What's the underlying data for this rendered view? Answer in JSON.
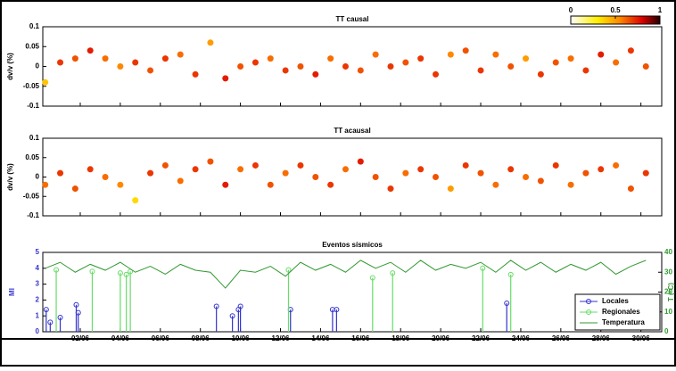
{
  "chart_data": [
    {
      "type": "scatter",
      "title": "TT causal",
      "y_label": "dv/v (%)",
      "xlim": [
        0.13,
        31.04
      ],
      "ylim": [
        -0.1,
        0.1
      ],
      "yticks": [
        -0.1,
        -0.05,
        0,
        0.05,
        0.1
      ],
      "clim": [
        0,
        1
      ],
      "cticks": [
        0,
        0.5,
        1
      ],
      "x": [
        0.25,
        1,
        1.75,
        2.5,
        3.25,
        4,
        4.75,
        5.5,
        6.25,
        7,
        7.75,
        8.5,
        9.25,
        10,
        10.75,
        11.5,
        12.25,
        13,
        13.75,
        14.5,
        15.25,
        16,
        16.75,
        17.5,
        18.25,
        19,
        19.75,
        20.5,
        21.25,
        22,
        22.75,
        23.5,
        24.25,
        25,
        25.75,
        26.5,
        27.25,
        28,
        28.75,
        29.5,
        30.25
      ],
      "values": [
        -0.04,
        0.01,
        0.02,
        0.04,
        0.02,
        0.0,
        0.01,
        -0.01,
        0.02,
        0.03,
        -0.02,
        0.06,
        -0.03,
        0.0,
        0.01,
        0.02,
        -0.01,
        0.0,
        -0.02,
        0.02,
        0.0,
        -0.01,
        0.03,
        0.0,
        0.01,
        0.02,
        -0.02,
        0.03,
        0.04,
        -0.01,
        0.03,
        0.0,
        0.02,
        -0.02,
        0.01,
        0.02,
        -0.01,
        0.03,
        0.01,
        0.04,
        0.0
      ],
      "color_values": [
        0.4,
        0.7,
        0.65,
        0.75,
        0.6,
        0.55,
        0.7,
        0.65,
        0.7,
        0.6,
        0.7,
        0.5,
        0.75,
        0.65,
        0.7,
        0.6,
        0.7,
        0.65,
        0.75,
        0.6,
        0.7,
        0.65,
        0.6,
        0.7,
        0.65,
        0.7,
        0.7,
        0.55,
        0.65,
        0.7,
        0.6,
        0.65,
        0.5,
        0.7,
        0.65,
        0.6,
        0.7,
        0.75,
        0.6,
        0.7,
        0.65
      ]
    },
    {
      "type": "scatter",
      "title": "TT acausal",
      "y_label": "dv/v (%)",
      "xlim": [
        0.13,
        31.04
      ],
      "ylim": [
        -0.1,
        0.1
      ],
      "yticks": [
        -0.1,
        -0.05,
        0,
        0.05,
        0.1
      ],
      "x": [
        0.25,
        1,
        1.75,
        2.5,
        3.25,
        4,
        4.75,
        5.5,
        6.25,
        7,
        7.75,
        8.5,
        9.25,
        10,
        10.75,
        11.5,
        12.25,
        13,
        13.75,
        14.5,
        15.25,
        16,
        16.75,
        17.5,
        18.25,
        19,
        19.75,
        20.5,
        21.25,
        22,
        22.75,
        23.5,
        24.25,
        25,
        25.75,
        26.5,
        27.25,
        28,
        28.75,
        29.5,
        30.25
      ],
      "values": [
        -0.02,
        0.01,
        -0.03,
        0.02,
        0.0,
        -0.02,
        -0.06,
        0.01,
        0.03,
        -0.01,
        0.02,
        0.04,
        -0.02,
        0.02,
        0.03,
        -0.02,
        0.01,
        0.03,
        0.0,
        -0.02,
        0.02,
        0.04,
        0.0,
        -0.03,
        0.01,
        0.02,
        0.0,
        -0.03,
        0.03,
        0.01,
        -0.02,
        0.02,
        0.0,
        -0.01,
        0.03,
        -0.02,
        0.01,
        0.02,
        0.03,
        -0.03,
        0.01
      ],
      "color_values": [
        0.6,
        0.7,
        0.65,
        0.7,
        0.6,
        0.55,
        0.35,
        0.7,
        0.65,
        0.6,
        0.7,
        0.65,
        0.75,
        0.6,
        0.7,
        0.65,
        0.6,
        0.7,
        0.65,
        0.7,
        0.6,
        0.75,
        0.65,
        0.7,
        0.6,
        0.7,
        0.65,
        0.5,
        0.7,
        0.65,
        0.6,
        0.7,
        0.6,
        0.65,
        0.7,
        0.6,
        0.65,
        0.7,
        0.6,
        0.65,
        0.7
      ]
    },
    {
      "type": "stem",
      "title": "Eventos sísmicos",
      "y_label": "Ml",
      "y2_label": "T (ºC)",
      "xlim": [
        0.13,
        31.04
      ],
      "ylim": [
        0,
        5
      ],
      "yticks": [
        0,
        1,
        2,
        3,
        4,
        5
      ],
      "y2lim": [
        0,
        40
      ],
      "y2ticks": [
        0,
        10,
        20,
        30,
        40
      ],
      "xticks": [
        {
          "value": 2,
          "label": "02/06"
        },
        {
          "value": 4,
          "label": "04/06"
        },
        {
          "value": 6,
          "label": "06/06"
        },
        {
          "value": 8,
          "label": "08/06"
        },
        {
          "value": 10,
          "label": "10/06"
        },
        {
          "value": 12,
          "label": "12/06"
        },
        {
          "value": 14,
          "label": "14/06"
        },
        {
          "value": 16,
          "label": "16/06"
        },
        {
          "value": 18,
          "label": "18/06"
        },
        {
          "value": 20,
          "label": "20/06"
        },
        {
          "value": 22,
          "label": "22/06"
        },
        {
          "value": 24,
          "label": "24/06"
        },
        {
          "value": 26,
          "label": "26/06"
        },
        {
          "value": 28,
          "label": "28/06"
        },
        {
          "value": 30,
          "label": "30/06"
        }
      ],
      "legend": "lower right",
      "series": [
        {
          "name": "Locales",
          "color": "#3333cc",
          "x": [
            0.3,
            0.5,
            1.0,
            1.8,
            1.9,
            8.8,
            9.6,
            9.9,
            10.0,
            12.5,
            14.6,
            14.8,
            23.3
          ],
          "values": [
            1.4,
            0.6,
            0.9,
            1.7,
            1.2,
            1.6,
            1.0,
            1.4,
            1.6,
            1.4,
            1.4,
            1.4,
            1.8
          ]
        },
        {
          "name": "Regionales",
          "color": "#66dd66",
          "x": [
            0.8,
            2.6,
            4.0,
            4.3,
            4.5,
            12.4,
            16.6,
            17.6,
            22.1,
            23.5
          ],
          "values": [
            3.9,
            3.8,
            3.7,
            3.6,
            3.8,
            3.9,
            3.4,
            3.7,
            4.0,
            3.6
          ]
        },
        {
          "name": "Temperatura",
          "color": "#339933",
          "axis": "y2",
          "type": "line",
          "x": [
            0.25,
            1,
            1.75,
            2.5,
            3.25,
            4,
            4.75,
            5.5,
            6.25,
            7,
            7.75,
            8.5,
            9.25,
            10,
            10.75,
            11.5,
            12.25,
            13,
            13.75,
            14.5,
            15.25,
            16,
            16.75,
            17.5,
            18.25,
            19,
            19.75,
            20.5,
            21.25,
            22,
            22.75,
            23.5,
            24.25,
            25,
            25.75,
            26.5,
            27.25,
            28,
            28.75,
            29.5,
            30.25
          ],
          "values": [
            32,
            35,
            30,
            34,
            31,
            35,
            30,
            33,
            29,
            34,
            31,
            30,
            22,
            31,
            30,
            33,
            28,
            35,
            31,
            34,
            30,
            36,
            32,
            35,
            30,
            36,
            31,
            34,
            32,
            35,
            30,
            36,
            31,
            35,
            30,
            34,
            31,
            35,
            29,
            33,
            36
          ]
        }
      ]
    }
  ]
}
